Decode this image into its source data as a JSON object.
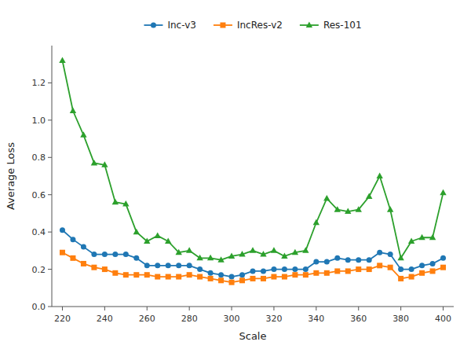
{
  "chart_data": {
    "type": "line",
    "x": [
      220,
      225,
      230,
      235,
      240,
      245,
      250,
      255,
      260,
      265,
      270,
      275,
      280,
      285,
      290,
      295,
      300,
      305,
      310,
      315,
      320,
      325,
      330,
      335,
      340,
      345,
      350,
      355,
      360,
      365,
      370,
      375,
      380,
      385,
      390,
      395,
      400
    ],
    "series": [
      {
        "name": "Inc-v3",
        "color": "#1f77b4",
        "marker": "circle",
        "values": [
          0.41,
          0.36,
          0.32,
          0.28,
          0.28,
          0.28,
          0.28,
          0.26,
          0.22,
          0.22,
          0.22,
          0.22,
          0.22,
          0.2,
          0.18,
          0.17,
          0.16,
          0.17,
          0.19,
          0.19,
          0.2,
          0.2,
          0.2,
          0.2,
          0.24,
          0.24,
          0.26,
          0.25,
          0.25,
          0.25,
          0.29,
          0.28,
          0.2,
          0.2,
          0.22,
          0.23,
          0.26
        ]
      },
      {
        "name": "IncRes-v2",
        "color": "#ff7f0e",
        "marker": "square",
        "values": [
          0.29,
          0.26,
          0.23,
          0.21,
          0.2,
          0.18,
          0.17,
          0.17,
          0.17,
          0.16,
          0.16,
          0.16,
          0.17,
          0.16,
          0.15,
          0.14,
          0.13,
          0.14,
          0.15,
          0.15,
          0.16,
          0.16,
          0.17,
          0.17,
          0.18,
          0.18,
          0.19,
          0.19,
          0.2,
          0.2,
          0.22,
          0.21,
          0.15,
          0.16,
          0.18,
          0.19,
          0.21
        ]
      },
      {
        "name": "Res-101",
        "color": "#2ca02c",
        "marker": "triangle",
        "values": [
          1.32,
          1.05,
          0.92,
          0.77,
          0.76,
          0.56,
          0.55,
          0.4,
          0.35,
          0.38,
          0.35,
          0.29,
          0.3,
          0.26,
          0.26,
          0.25,
          0.27,
          0.28,
          0.3,
          0.28,
          0.3,
          0.27,
          0.29,
          0.3,
          0.45,
          0.58,
          0.52,
          0.51,
          0.52,
          0.59,
          0.7,
          0.52,
          0.26,
          0.35,
          0.37,
          0.37,
          0.61
        ]
      }
    ],
    "x_label": "Scale",
    "y_label": "Average Loss",
    "xlim": [
      215,
      405
    ],
    "ylim": [
      0.0,
      1.4
    ],
    "xticks": [
      220,
      240,
      260,
      280,
      300,
      320,
      340,
      360,
      380,
      400
    ],
    "yticks": [
      {
        "value": 0.0,
        "label": "0.0"
      },
      0.2,
      0.4,
      0.6,
      0.8,
      {
        "value": 1.0,
        "label": "1.0"
      },
      1.2
    ],
    "grid": false,
    "legend": "top"
  }
}
